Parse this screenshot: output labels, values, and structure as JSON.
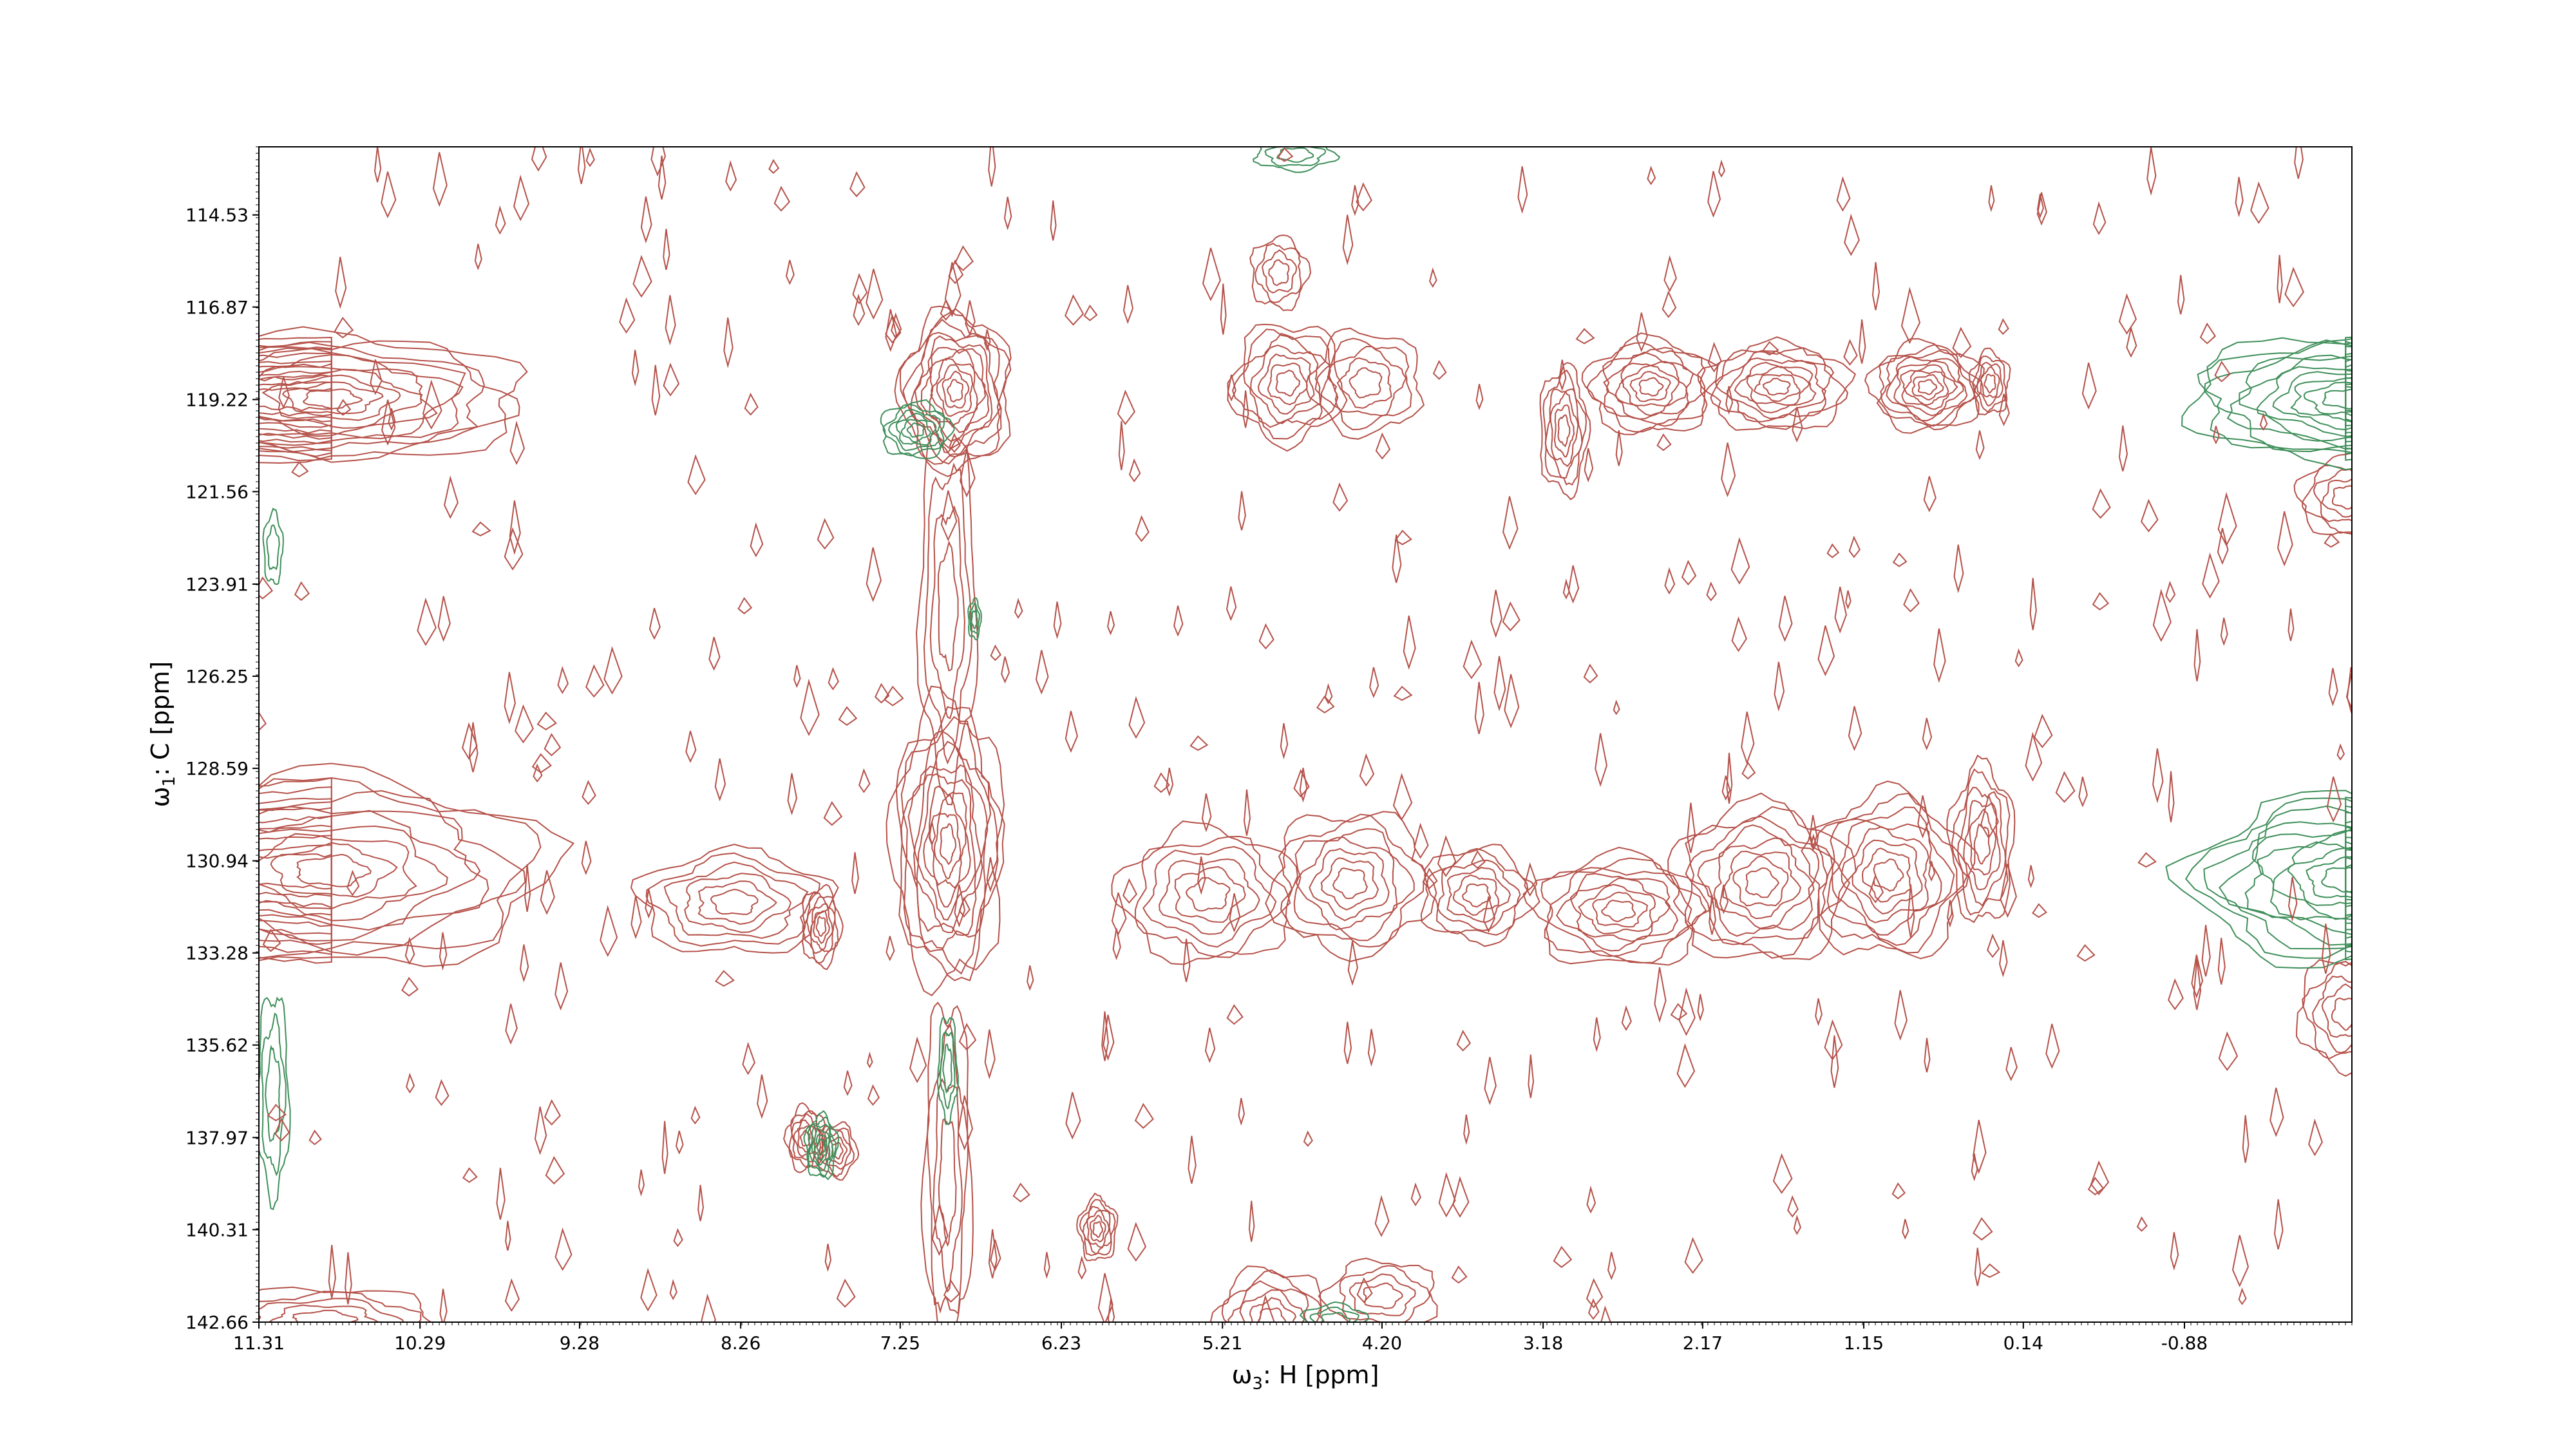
{
  "chart_data": {
    "type": "contour",
    "xlabel_prefix": "ω",
    "xlabel_sub": "3",
    "xlabel_suffix": ": H [ppm]",
    "ylabel_prefix": "ω",
    "ylabel_sub": "1",
    "ylabel_suffix": ": C [ppm]",
    "x_ticks": [
      "11.31",
      "10.29",
      "9.28",
      "8.26",
      "7.25",
      "6.23",
      "5.21",
      "4.20",
      "3.18",
      "2.17",
      "1.15",
      "0.14",
      "-0.88"
    ],
    "y_ticks": [
      "114.53",
      "116.87",
      "119.22",
      "121.56",
      "123.91",
      "126.25",
      "128.59",
      "130.94",
      "133.28",
      "135.62",
      "137.97",
      "140.31",
      "142.66"
    ],
    "xlim": [
      11.31,
      -1.94
    ],
    "ylim": [
      142.66,
      112.8
    ],
    "colors": {
      "positive": "#b5524a",
      "negative": "#3f8f5a"
    },
    "positive_peaks": [
      {
        "x": 10.85,
        "y": 119.2,
        "wx": 1.2,
        "wy": 1.6,
        "levels": 10,
        "tail_x": 3.2
      },
      {
        "x": 10.85,
        "y": 131.2,
        "wx": 1.4,
        "wy": 2.4,
        "levels": 9,
        "tail_x": 3.0
      },
      {
        "x": 6.9,
        "y": 119.0,
        "wx": 0.35,
        "wy": 2.0,
        "levels": 11
      },
      {
        "x": 6.95,
        "y": 130.5,
        "wx": 0.35,
        "wy": 3.6,
        "levels": 11
      },
      {
        "x": 6.95,
        "y": 124.5,
        "wx": 0.18,
        "wy": 4.5,
        "levels": 4
      },
      {
        "x": 6.95,
        "y": 139.0,
        "wx": 0.15,
        "wy": 4.5,
        "levels": 4
      },
      {
        "x": 4.8,
        "y": 118.8,
        "wx": 0.35,
        "wy": 1.5,
        "levels": 7
      },
      {
        "x": 4.3,
        "y": 118.8,
        "wx": 0.35,
        "wy": 1.3,
        "levels": 5
      },
      {
        "x": 3.05,
        "y": 120.0,
        "wx": 0.15,
        "wy": 1.6,
        "levels": 6
      },
      {
        "x": 2.5,
        "y": 118.9,
        "wx": 0.4,
        "wy": 1.2,
        "levels": 8
      },
      {
        "x": 1.7,
        "y": 118.9,
        "wx": 0.45,
        "wy": 1.1,
        "levels": 8
      },
      {
        "x": 0.75,
        "y": 118.9,
        "wx": 0.35,
        "wy": 1.1,
        "levels": 9
      },
      {
        "x": 0.35,
        "y": 118.8,
        "wx": 0.12,
        "wy": 0.8,
        "levels": 5
      },
      {
        "x": 4.85,
        "y": 116.0,
        "wx": 0.18,
        "wy": 0.9,
        "levels": 4
      },
      {
        "x": 8.3,
        "y": 132.0,
        "wx": 0.6,
        "wy": 1.3,
        "levels": 6
      },
      {
        "x": 7.75,
        "y": 132.6,
        "wx": 0.12,
        "wy": 1.0,
        "levels": 6
      },
      {
        "x": 5.3,
        "y": 131.8,
        "wx": 0.55,
        "wy": 1.7,
        "levels": 6
      },
      {
        "x": 4.4,
        "y": 131.5,
        "wx": 0.5,
        "wy": 1.8,
        "levels": 7
      },
      {
        "x": 3.6,
        "y": 131.8,
        "wx": 0.35,
        "wy": 1.2,
        "levels": 6
      },
      {
        "x": 2.7,
        "y": 132.2,
        "wx": 0.55,
        "wy": 1.4,
        "levels": 8
      },
      {
        "x": 1.8,
        "y": 131.5,
        "wx": 0.55,
        "wy": 2.0,
        "levels": 8
      },
      {
        "x": 1.0,
        "y": 131.3,
        "wx": 0.5,
        "wy": 2.1,
        "levels": 8
      },
      {
        "x": 0.4,
        "y": 130.5,
        "wx": 0.2,
        "wy": 2.0,
        "levels": 6
      },
      {
        "x": 7.85,
        "y": 138.0,
        "wx": 0.12,
        "wy": 0.8,
        "levels": 6
      },
      {
        "x": 7.65,
        "y": 138.3,
        "wx": 0.12,
        "wy": 0.7,
        "levels": 5
      },
      {
        "x": 6.0,
        "y": 140.3,
        "wx": 0.12,
        "wy": 0.8,
        "levels": 6
      },
      {
        "x": 4.9,
        "y": 142.6,
        "wx": 0.35,
        "wy": 1.3,
        "levels": 6
      },
      {
        "x": 10.9,
        "y": 142.6,
        "wx": 0.7,
        "wy": 0.8,
        "levels": 5
      },
      {
        "x": -1.9,
        "y": 121.7,
        "wx": 0.3,
        "wy": 1.0,
        "levels": 5
      },
      {
        "x": -1.9,
        "y": 134.8,
        "wx": 0.3,
        "wy": 1.4,
        "levels": 5
      },
      {
        "x": 4.2,
        "y": 142.0,
        "wx": 0.35,
        "wy": 0.9,
        "levels": 4
      }
    ],
    "negative_peaks": [
      {
        "x": -1.9,
        "y": 119.2,
        "wx": 1.0,
        "wy": 1.6,
        "levels": 10,
        "tail_x": 2.3
      },
      {
        "x": -1.9,
        "y": 131.4,
        "wx": 1.0,
        "wy": 2.1,
        "levels": 10,
        "tail_x": 2.3
      },
      {
        "x": 7.15,
        "y": 120.0,
        "wx": 0.22,
        "wy": 0.7,
        "levels": 6
      },
      {
        "x": 7.75,
        "y": 138.2,
        "wx": 0.1,
        "wy": 0.8,
        "levels": 6
      },
      {
        "x": 6.95,
        "y": 136.2,
        "wx": 0.06,
        "wy": 1.3,
        "levels": 3
      },
      {
        "x": 4.75,
        "y": 113.0,
        "wx": 0.25,
        "wy": 0.4,
        "levels": 3
      },
      {
        "x": 11.22,
        "y": 136.9,
        "wx": 0.1,
        "wy": 2.6,
        "levels": 3
      },
      {
        "x": 11.22,
        "y": 123.0,
        "wx": 0.06,
        "wy": 0.9,
        "levels": 2
      },
      {
        "x": 4.5,
        "y": 142.6,
        "wx": 0.2,
        "wy": 0.4,
        "levels": 3
      },
      {
        "x": 6.78,
        "y": 124.8,
        "wx": 0.04,
        "wy": 0.5,
        "levels": 3
      }
    ]
  }
}
